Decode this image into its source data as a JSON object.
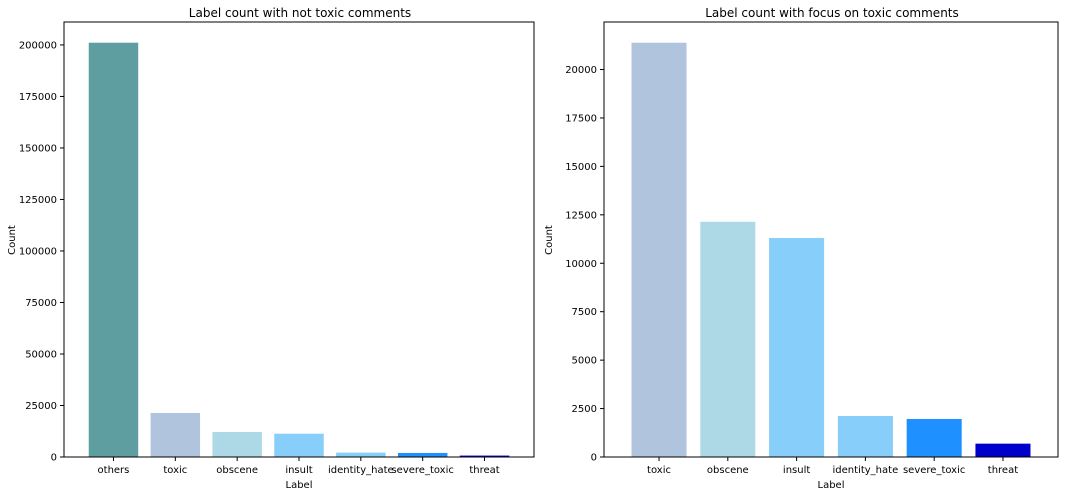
{
  "chart_data": [
    {
      "type": "bar",
      "title": "Label count with not toxic comments",
      "xlabel": "Label",
      "ylabel": "Count",
      "categories": [
        "others",
        "toxic",
        "obscene",
        "insult",
        "identity_hate",
        "severe_toxic",
        "threat"
      ],
      "values": [
        201081,
        21384,
        12140,
        11304,
        2117,
        1962,
        689
      ],
      "colors": [
        "#5f9ea0",
        "#b0c4de",
        "#add8e6",
        "#87cefa",
        "#87cefa",
        "#1e90ff",
        "#0000cd"
      ],
      "yticks": [
        0,
        25000,
        50000,
        75000,
        100000,
        125000,
        150000,
        175000,
        200000
      ],
      "ylim": [
        0,
        211135
      ],
      "grid": false,
      "legend": "none"
    },
    {
      "type": "bar",
      "title": "Label count with focus on toxic comments",
      "xlabel": "Label",
      "ylabel": "Count",
      "categories": [
        "toxic",
        "obscene",
        "insult",
        "identity_hate",
        "severe_toxic",
        "threat"
      ],
      "values": [
        21384,
        12140,
        11304,
        2117,
        1962,
        689
      ],
      "colors": [
        "#b0c4de",
        "#add8e6",
        "#87cefa",
        "#87cefa",
        "#1e90ff",
        "#0000cd"
      ],
      "yticks": [
        0,
        2500,
        5000,
        7500,
        10000,
        12500,
        15000,
        17500,
        20000
      ],
      "ylim": [
        0,
        22453
      ],
      "grid": false,
      "legend": "none"
    }
  ]
}
